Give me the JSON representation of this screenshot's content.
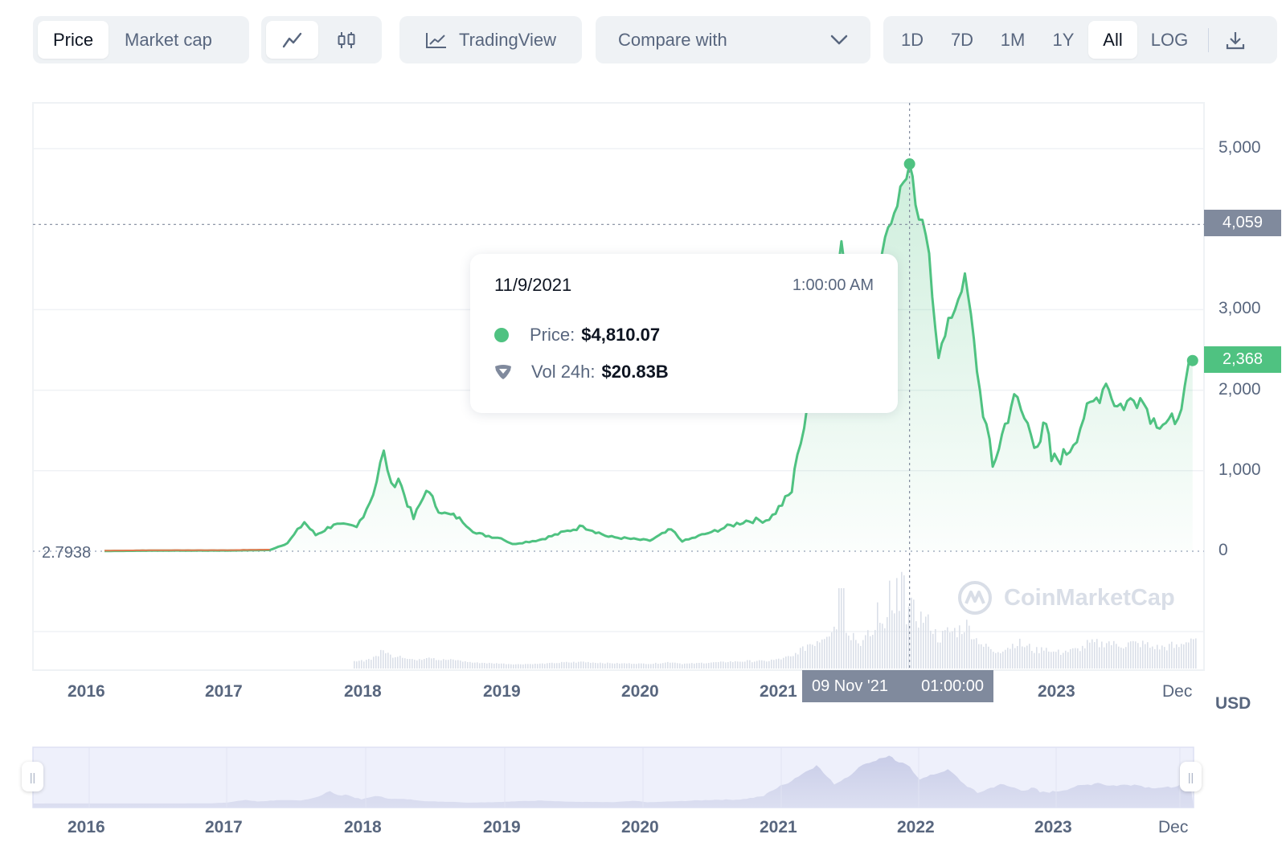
{
  "toolbar": {
    "view_tabs": [
      "Price",
      "Market cap"
    ],
    "tradingview_label": "TradingView",
    "compare_label": "Compare with",
    "ranges": [
      "1D",
      "7D",
      "1M",
      "1Y",
      "All"
    ],
    "log_label": "LOG",
    "active_range": "All",
    "active_view": "Price"
  },
  "tooltip": {
    "date": "11/9/2021",
    "time": "1:00:00 AM",
    "price_label": "Price:",
    "price_value": "$4,810.07",
    "vol_label": "Vol 24h:",
    "vol_value": "$20.83B"
  },
  "crosshair": {
    "price_tag": "4,059",
    "date_tag": "09 Nov '21",
    "time_tag": "01:00:00"
  },
  "current_price_tag": "2,368",
  "base_value_label": "2.7938",
  "currency": "USD",
  "watermark": "CoinMarketCap",
  "colors": {
    "line": "#4fc281",
    "price_tag": "#4fc281",
    "crosshair_tag": "#808a9d",
    "pre_line": "#e07a4f"
  },
  "chart_data": {
    "type": "area",
    "ylim": [
      0,
      5000
    ],
    "yticks": [
      "0",
      "1,000",
      "2,000",
      "3,000",
      "5,000"
    ],
    "xticks": [
      "2016",
      "2017",
      "2018",
      "2019",
      "2020",
      "2021",
      "2023",
      "Dec"
    ],
    "series": [
      {
        "values": [
          [
            "2016-01-01",
            3
          ],
          [
            "2016-06-01",
            8
          ],
          [
            "2016-12-01",
            9
          ],
          [
            "2017-03-15",
            15
          ],
          [
            "2017-05-01",
            100
          ],
          [
            "2017-06-15",
            360
          ],
          [
            "2017-07-15",
            200
          ],
          [
            "2017-09-01",
            330
          ],
          [
            "2017-11-01",
            300
          ],
          [
            "2017-12-15",
            700
          ],
          [
            "2018-01-12",
            1250
          ],
          [
            "2018-02-01",
            850
          ],
          [
            "2018-02-20",
            900
          ],
          [
            "2018-04-01",
            400
          ],
          [
            "2018-05-05",
            750
          ],
          [
            "2018-06-15",
            470
          ],
          [
            "2018-08-01",
            420
          ],
          [
            "2018-09-15",
            220
          ],
          [
            "2018-11-20",
            160
          ],
          [
            "2018-12-20",
            90
          ],
          [
            "2019-03-01",
            140
          ],
          [
            "2019-06-25",
            310
          ],
          [
            "2019-09-01",
            180
          ],
          [
            "2019-12-20",
            130
          ],
          [
            "2020-02-15",
            270
          ],
          [
            "2020-03-15",
            120
          ],
          [
            "2020-06-01",
            240
          ],
          [
            "2020-09-01",
            380
          ],
          [
            "2020-11-01",
            390
          ],
          [
            "2020-12-31",
            735
          ],
          [
            "2021-01-15",
            1200
          ],
          [
            "2021-02-20",
            1900
          ],
          [
            "2021-05-12",
            3850
          ],
          [
            "2021-06-25",
            1900
          ],
          [
            "2021-08-15",
            3200
          ],
          [
            "2021-09-05",
            3900
          ],
          [
            "2021-11-09",
            4810
          ],
          [
            "2021-11-25",
            4300
          ],
          [
            "2021-12-31",
            3700
          ],
          [
            "2022-01-25",
            2400
          ],
          [
            "2022-03-01",
            2900
          ],
          [
            "2022-04-05",
            3450
          ],
          [
            "2022-05-15",
            2000
          ],
          [
            "2022-06-18",
            1050
          ],
          [
            "2022-08-14",
            1950
          ],
          [
            "2022-09-10",
            1650
          ],
          [
            "2022-10-15",
            1300
          ],
          [
            "2022-11-07",
            1580
          ],
          [
            "2022-11-21",
            1120
          ],
          [
            "2022-12-31",
            1200
          ],
          [
            "2023-02-15",
            1650
          ],
          [
            "2023-04-15",
            2080
          ],
          [
            "2023-05-15",
            1800
          ],
          [
            "2023-07-15",
            1900
          ],
          [
            "2023-08-20",
            1650
          ],
          [
            "2023-10-15",
            1580
          ],
          [
            "2023-11-10",
            2050
          ],
          [
            "2023-12-01",
            2368
          ]
        ]
      }
    ],
    "volume_peak_date": "2021-05-12",
    "nav_xticks": [
      "2016",
      "2017",
      "2018",
      "2019",
      "2020",
      "2021",
      "2022",
      "2023",
      "Dec"
    ]
  }
}
